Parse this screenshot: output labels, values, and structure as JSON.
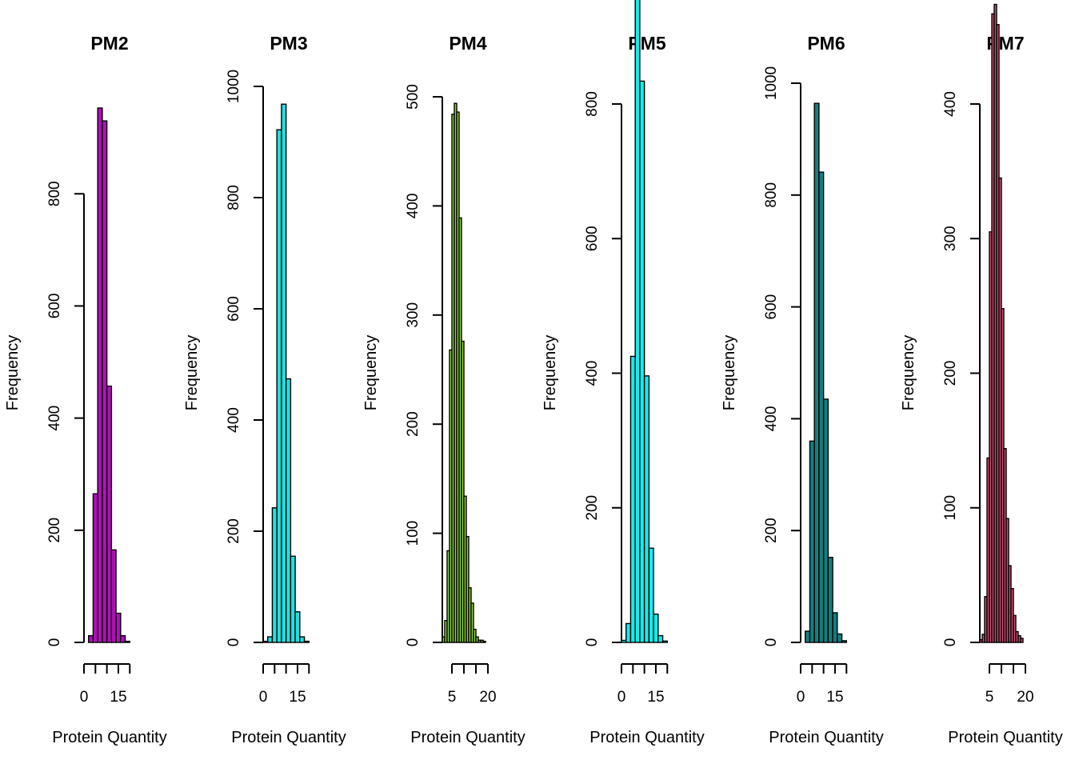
{
  "chart_data": [
    {
      "type": "bar",
      "title": "PM2",
      "xlabel": "Protein Quantity",
      "ylabel": "Frequency",
      "color": "#b010b8",
      "bin_edges": [
        0,
        2,
        4,
        6,
        8,
        10,
        12,
        14,
        16,
        18,
        20,
        22
      ],
      "values": [
        0,
        12,
        265,
        953,
        930,
        457,
        165,
        52,
        12,
        2,
        0
      ],
      "xlim": [
        0,
        22
      ],
      "xticks": [
        0,
        5,
        10,
        15,
        20
      ],
      "xtick_labels": [
        "0",
        "",
        "",
        "15",
        ""
      ],
      "ylim": [
        0,
        953
      ],
      "yticks": [
        0,
        200,
        400,
        600,
        800
      ],
      "ytick_labels": [
        "0",
        "200",
        "400",
        "600",
        "800"
      ]
    },
    {
      "type": "bar",
      "title": "PM3",
      "xlabel": "Protein Quantity",
      "ylabel": "Frequency",
      "color": "#22e0e0",
      "bin_edges": [
        0,
        2,
        4,
        6,
        8,
        10,
        12,
        14,
        16,
        18,
        20,
        22
      ],
      "values": [
        2,
        10,
        242,
        922,
        968,
        474,
        155,
        55,
        10,
        2,
        0
      ],
      "xlim": [
        0,
        22
      ],
      "xticks": [
        0,
        5,
        10,
        15,
        20
      ],
      "xtick_labels": [
        "0",
        "",
        "",
        "15",
        ""
      ],
      "ylim": [
        0,
        1000
      ],
      "yticks": [
        0,
        200,
        400,
        600,
        800,
        1000
      ],
      "ytick_labels": [
        "0",
        "200",
        "400",
        "600",
        "800",
        "1000"
      ]
    },
    {
      "type": "bar",
      "title": "PM4",
      "xlabel": "Protein Quantity",
      "ylabel": "Frequency",
      "color": "#8ed63a",
      "bin_edges": [
        1,
        2,
        3,
        4,
        5,
        6,
        7,
        8,
        9,
        10,
        11,
        12,
        13,
        14,
        15,
        16,
        17,
        18,
        19,
        20,
        21,
        22
      ],
      "values": [
        5,
        20,
        84,
        268,
        484,
        494,
        486,
        389,
        276,
        134,
        97,
        50,
        36,
        12,
        5,
        2,
        2,
        1,
        0,
        0,
        0
      ],
      "xlim": [
        1,
        22
      ],
      "xticks": [
        5,
        10,
        15,
        20
      ],
      "xtick_labels": [
        "5",
        "",
        "",
        "20"
      ],
      "ylim": [
        0,
        500
      ],
      "yticks": [
        0,
        100,
        200,
        300,
        400,
        500
      ],
      "ytick_labels": [
        "0",
        "100",
        "200",
        "300",
        "400",
        "500"
      ]
    },
    {
      "type": "bar",
      "title": "PM5",
      "xlabel": "Protein Quantity",
      "ylabel": "Frequency",
      "color": "#11eeee",
      "bin_edges": [
        0,
        2,
        4,
        6,
        8,
        10,
        12,
        14,
        16,
        18,
        20,
        22
      ],
      "values": [
        3,
        28,
        425,
        956,
        834,
        396,
        140,
        42,
        10,
        2,
        0
      ],
      "xlim": [
        0,
        22
      ],
      "xticks": [
        0,
        5,
        10,
        15,
        20
      ],
      "xtick_labels": [
        "0",
        "",
        "",
        "15",
        ""
      ],
      "ylim": [
        0,
        800
      ],
      "yticks": [
        0,
        200,
        400,
        600,
        800
      ],
      "ytick_labels": [
        "0",
        "200",
        "400",
        "600",
        "800"
      ]
    },
    {
      "type": "bar",
      "title": "PM6",
      "xlabel": "Protein Quantity",
      "ylabel": "Frequency",
      "color": "#137f80",
      "bin_edges": [
        0,
        2,
        4,
        6,
        8,
        10,
        12,
        14,
        16,
        18,
        20,
        22
      ],
      "values": [
        0,
        20,
        360,
        964,
        841,
        435,
        152,
        53,
        15,
        3,
        0
      ],
      "xlim": [
        0,
        22
      ],
      "xticks": [
        0,
        5,
        10,
        15,
        20
      ],
      "xtick_labels": [
        "0",
        "",
        "",
        "15",
        ""
      ],
      "ylim": [
        0,
        1000
      ],
      "yticks": [
        0,
        200,
        400,
        600,
        800,
        1000
      ],
      "ytick_labels": [
        "0",
        "200",
        "400",
        "600",
        "800",
        "1000"
      ]
    },
    {
      "type": "bar",
      "title": "PM7",
      "xlabel": "Protein Quantity",
      "ylabel": "Frequency",
      "color": "#d14f72",
      "bin_edges": [
        1,
        2,
        3,
        4,
        5,
        6,
        7,
        8,
        9,
        10,
        11,
        12,
        13,
        14,
        15,
        16,
        17,
        18,
        19,
        20,
        21,
        22
      ],
      "values": [
        2,
        6,
        34,
        137,
        305,
        467,
        474,
        459,
        345,
        248,
        144,
        92,
        57,
        40,
        20,
        8,
        5,
        3,
        0,
        0,
        0
      ],
      "xlim": [
        1,
        22
      ],
      "xticks": [
        5,
        10,
        15,
        20
      ],
      "xtick_labels": [
        "5",
        "",
        "",
        "20"
      ],
      "ylim": [
        0,
        400
      ],
      "yticks": [
        0,
        100,
        200,
        300,
        400
      ],
      "ytick_labels": [
        "0",
        "100",
        "200",
        "300",
        "400"
      ]
    }
  ]
}
